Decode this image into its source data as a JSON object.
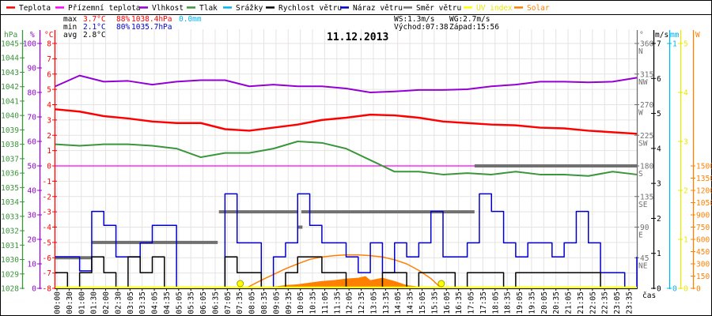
{
  "legend": [
    {
      "label": "Teplota",
      "color": "#ff0000"
    },
    {
      "label": "Přízemní teplota",
      "color": "#ff00ff"
    },
    {
      "label": "Vlhkost",
      "color": "#9400d3"
    },
    {
      "label": "Tlak",
      "color": "#3a963a"
    },
    {
      "label": "Srážky",
      "color": "#00b4f0"
    },
    {
      "label": "Rychlost větru",
      "color": "#000000"
    },
    {
      "label": "Náraz větru",
      "color": "#0000cc"
    },
    {
      "label": "Směr větru",
      "color": "#707070"
    },
    {
      "label": "UV index",
      "color": "#ffff00"
    },
    {
      "label": "Solar",
      "color": "#ff8000"
    }
  ],
  "stats": {
    "max": {
      "label": "max",
      "temp": "3.7°C",
      "hum": "88%",
      "press": "1038.4hPa",
      "rain": "0.0mm"
    },
    "min": {
      "label": "min",
      "temp": "2.1°C",
      "hum": "80%",
      "press": "1035.7hPa"
    },
    "avg": {
      "label": "avg",
      "temp": "2.8°C"
    }
  },
  "wind_info": {
    "ws": "WS:1.3m/s",
    "wg": "WG:2.7m/s",
    "sunrise": "Východ:07:38",
    "sunset": "Západ:15:56"
  },
  "chart_data": {
    "type": "line",
    "title": "11.12.2013",
    "xlabel": "čas",
    "grid": true,
    "x_ticks": [
      "00:00",
      "00:30",
      "01:00",
      "01:30",
      "02:00",
      "02:30",
      "03:05",
      "03:35",
      "04:05",
      "04:35",
      "05:05",
      "05:35",
      "06:05",
      "06:35",
      "07:05",
      "07:35",
      "08:05",
      "08:35",
      "09:05",
      "09:35",
      "10:05",
      "10:35",
      "11:05",
      "11:35",
      "12:05",
      "12:35",
      "13:05",
      "13:35",
      "14:05",
      "14:35",
      "15:05",
      "15:35",
      "16:05",
      "16:35",
      "17:05",
      "17:35",
      "18:05",
      "18:35",
      "19:05",
      "19:35",
      "20:05",
      "20:35",
      "21:05",
      "21:35",
      "22:05",
      "22:35",
      "23:05",
      "23:35"
    ],
    "axes": {
      "pressure": {
        "unit": "hPa",
        "range": [
          1028,
          1045
        ],
        "ticks": [
          "1045",
          "1044",
          "1043",
          "1042",
          "1041",
          "1040",
          "1039",
          "1038",
          "1037",
          "1036",
          "1035",
          "1034",
          "1033",
          "1032",
          "1031",
          "1030",
          "1029",
          "1028"
        ],
        "color": "#3a963a"
      },
      "humidity": {
        "unit": "%",
        "range": [
          0,
          100
        ],
        "ticks": [
          "100",
          "90",
          "80",
          "70",
          "60",
          "50",
          "40",
          "30",
          "20",
          "10",
          "0"
        ],
        "color": "#9400d3"
      },
      "temperature": {
        "unit": "°C",
        "range": [
          -8,
          8
        ],
        "ticks": [
          "8",
          "7",
          "6",
          "5",
          "4",
          "3",
          "2",
          "1",
          "0",
          "-1",
          "-2",
          "-3",
          "-4",
          "-5",
          "-6",
          "-7",
          "-8"
        ],
        "color": "#ff0000"
      },
      "direction": {
        "unit": "°",
        "range": [
          0,
          360
        ],
        "ticks": [
          {
            "v": "360",
            "d": "N"
          },
          {
            "v": "315",
            "d": "NW"
          },
          {
            "v": "270",
            "d": "W"
          },
          {
            "v": "225",
            "d": "SW"
          },
          {
            "v": "180",
            "d": "S"
          },
          {
            "v": "135",
            "d": "SE"
          },
          {
            "v": "90",
            "d": "E"
          },
          {
            "v": "45",
            "d": "NE"
          }
        ],
        "color": "#707070"
      },
      "wind": {
        "unit": "m/s",
        "range": [
          0,
          7
        ],
        "ticks": [
          "7",
          "6",
          "5",
          "4",
          "3",
          "2",
          "1",
          "0"
        ],
        "color": "#000000"
      },
      "rain": {
        "unit": "mm",
        "range": [
          0,
          1
        ],
        "ticks": [
          "1",
          "0"
        ],
        "color": "#00b4f0"
      },
      "uv": {
        "unit": "",
        "range": [
          0,
          5
        ],
        "ticks": [
          "5",
          "4",
          "3",
          "2",
          "1",
          "0"
        ],
        "color": "#e8e800"
      },
      "solar": {
        "unit": "W",
        "range": [
          0,
          3000
        ],
        "ticks": [
          "1500",
          "1350",
          "1200",
          "1050",
          "900",
          "750",
          "600",
          "450",
          "300",
          "150",
          "0"
        ],
        "color": "#ff8000"
      }
    },
    "hours": [
      0,
      1,
      2,
      3,
      4,
      5,
      6,
      7,
      8,
      9,
      10,
      11,
      12,
      13,
      14,
      15,
      16,
      17,
      18,
      19,
      20,
      21,
      22,
      23,
      24
    ],
    "temperature": [
      3.7,
      3.55,
      3.25,
      3.1,
      2.9,
      2.8,
      2.8,
      2.4,
      2.3,
      2.5,
      2.7,
      3.0,
      3.15,
      3.35,
      3.3,
      3.15,
      2.9,
      2.8,
      2.7,
      2.65,
      2.5,
      2.45,
      2.3,
      2.2,
      2.1
    ],
    "feels_like_temperature": [
      0,
      0,
      0,
      0,
      0,
      0,
      0,
      0,
      0,
      0,
      0,
      0,
      0,
      0,
      0,
      0,
      0,
      0,
      0,
      0,
      0,
      0,
      0,
      0,
      0
    ],
    "humidity": [
      82.5,
      86.9,
      84.4,
      84.7,
      83.2,
      84.4,
      85.0,
      85.0,
      82.5,
      83.2,
      82.5,
      82.5,
      81.6,
      80.0,
      80.4,
      81.0,
      81.0,
      81.3,
      82.5,
      83.2,
      84.4,
      84.4,
      84.1,
      84.4,
      86.0
    ],
    "pressure": [
      1038.0,
      1037.9,
      1038.0,
      1038.0,
      1037.9,
      1037.7,
      1037.1,
      1037.4,
      1037.4,
      1037.7,
      1038.2,
      1038.1,
      1037.7,
      1036.9,
      1036.1,
      1036.1,
      1035.9,
      1036.0,
      1035.9,
      1036.1,
      1035.9,
      1035.9,
      1035.8,
      1036.1,
      1035.9
    ],
    "wind_hours": [
      0,
      0.5,
      1,
      1.5,
      2,
      2.5,
      3,
      3.5,
      4,
      4.5,
      5,
      5.5,
      6,
      6.5,
      7,
      7.5,
      8,
      8.5,
      9,
      9.5,
      10,
      10.5,
      11,
      11.5,
      12,
      12.5,
      13,
      13.5,
      14,
      14.5,
      15,
      15.5,
      16,
      16.5,
      17,
      17.5,
      18,
      18.5,
      19,
      19.5,
      20,
      20.5,
      21,
      21.5,
      22,
      22.5,
      23,
      23.5,
      24
    ],
    "wind_gust": [
      0.9,
      0.9,
      0.5,
      2.2,
      1.8,
      0.9,
      0.9,
      1.3,
      1.8,
      1.8,
      0,
      0,
      0,
      0,
      2.7,
      1.3,
      1.3,
      0,
      0.9,
      1.3,
      2.7,
      1.8,
      1.3,
      1.3,
      0.9,
      0.45,
      1.3,
      0.45,
      1.3,
      0.9,
      1.3,
      2.2,
      0.9,
      0.9,
      1.3,
      2.7,
      2.2,
      1.3,
      0.9,
      1.3,
      1.3,
      0.9,
      1.3,
      2.2,
      1.3,
      0.45,
      0.45,
      0,
      0.9
    ],
    "wind_speed": [
      0.45,
      0,
      0.45,
      0.9,
      0.45,
      0,
      0.9,
      0.45,
      0.9,
      0,
      0,
      0,
      0,
      0,
      0.9,
      0.45,
      0.45,
      0,
      0,
      0.45,
      0.9,
      0.9,
      0.45,
      0.45,
      0,
      0,
      0,
      0.45,
      0.45,
      0,
      0.45,
      0.45,
      0.45,
      0,
      0.45,
      0.45,
      0.45,
      0,
      0.45,
      0.45,
      0.45,
      0.45,
      0.45,
      0.45,
      0.45,
      0,
      0,
      0,
      0
    ],
    "wind_direction": [
      {
        "from": 0,
        "to": 1.5,
        "deg": 45
      },
      {
        "from": 1.5,
        "to": 6.7,
        "deg": 67.5
      },
      {
        "from": 6.75,
        "to": 10.0,
        "deg": 112.5
      },
      {
        "from": 10.0,
        "to": 10.2,
        "deg": 90
      },
      {
        "from": 10.15,
        "to": 17.3,
        "deg": 112.5
      },
      {
        "from": 17.3,
        "to": 24,
        "deg": 180
      }
    ],
    "rain": 0.0,
    "uv_index": 0,
    "sun_events": [
      {
        "label": "sunrise",
        "hour": 7.63
      },
      {
        "label": "sunset",
        "hour": 15.93
      }
    ],
    "solar_theoretical": {
      "hours": [
        7.85,
        8.5,
        9,
        9.5,
        10,
        10.5,
        11,
        11.5,
        12,
        12.5,
        13,
        13.5,
        14,
        14.5,
        15,
        15.5,
        15.93
      ],
      "values": [
        0,
        100,
        170,
        240,
        300,
        355,
        385,
        400,
        410,
        410,
        400,
        385,
        350,
        300,
        220,
        120,
        0
      ]
    },
    "solar_measured": {
      "hours": [
        8.3,
        8.5,
        9,
        9.5,
        10,
        10.5,
        11,
        11.5,
        12,
        12.5,
        12.8,
        13,
        13.5,
        14,
        14.5,
        15,
        15.5,
        16
      ],
      "values": [
        0,
        10,
        20,
        40,
        50,
        70,
        90,
        100,
        120,
        130,
        150,
        100,
        130,
        90,
        40,
        20,
        10,
        0
      ]
    }
  }
}
